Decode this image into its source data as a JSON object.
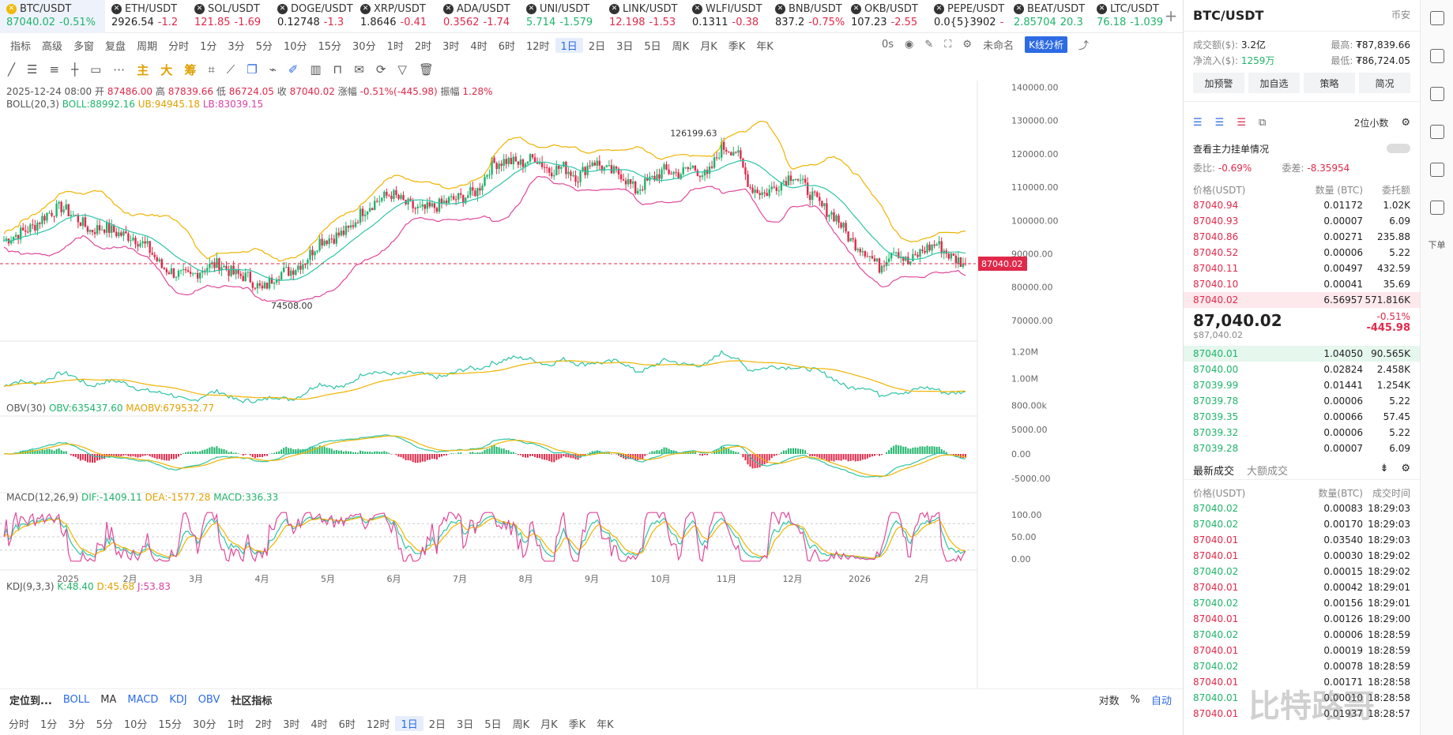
{
  "tickers": [
    {
      "name": "BTC/USDT",
      "price": "87040.02",
      "change": "-0.51%",
      "active": true,
      "color": "#1fb46a"
    },
    {
      "name": "ETH/USDT",
      "price": "2926.54",
      "change": "-1.2",
      "color": "#222"
    },
    {
      "name": "SOL/USDT",
      "price": "121.85",
      "change": "-1.69",
      "color": "#e0294a"
    },
    {
      "name": "DOGE/USDT",
      "price": "0.12748",
      "change": "-1.3",
      "color": "#222"
    },
    {
      "name": "XRP/USDT",
      "price": "1.8646",
      "change": "-0.41",
      "color": "#222"
    },
    {
      "name": "ADA/USDT",
      "price": "0.3562",
      "change": "-1.74",
      "color": "#e0294a"
    },
    {
      "name": "UNI/USDT",
      "price": "5.714",
      "change": "-1.579",
      "color": "#1fb46a"
    },
    {
      "name": "LINK/USDT",
      "price": "12.198",
      "change": "-1.53",
      "color": "#e0294a"
    },
    {
      "name": "WLFI/USDT",
      "price": "0.1311",
      "change": "-0.38",
      "color": "#222"
    },
    {
      "name": "BNB/USDT",
      "price": "837.2",
      "change": "-0.75%",
      "color": "#222"
    },
    {
      "name": "OKB/USDT",
      "price": "107.23",
      "change": "-2.55",
      "color": "#222"
    },
    {
      "name": "PEPE/USDT",
      "price": "0.0{5}3902",
      "change": "-",
      "color": "#222"
    },
    {
      "name": "BEAT/USDT",
      "price": "2.85704",
      "change": "20.3",
      "color": "#1fb46a"
    },
    {
      "name": "LTC/USDT",
      "price": "76.18",
      "change": "-1.039",
      "color": "#1fb46a"
    }
  ],
  "toolbar": {
    "items": [
      "指标",
      "高级",
      "多窗",
      "复盘",
      "周期",
      "分时",
      "1分",
      "3分",
      "5分",
      "10分",
      "15分",
      "30分",
      "1时",
      "2时",
      "3时",
      "4时",
      "6时",
      "12时",
      "1日",
      "2日",
      "3日",
      "5日",
      "周K",
      "月K",
      "季K",
      "年K"
    ],
    "selected": "1日"
  },
  "drawbar": {
    "main": "主",
    "big": "大",
    "chip": "筹"
  },
  "rtools": {
    "seconds": "0s",
    "unnamed": "未命名",
    "kline": "K线分析"
  },
  "info": {
    "date": "2025-12-24 08:00",
    "open_l": "开",
    "open": "87486.00",
    "high_l": "高",
    "high": "87839.66",
    "low_l": "低",
    "low": "86724.05",
    "close_l": "收",
    "close": "87040.02",
    "chg_l": "涨幅",
    "chg": "-0.51%(-445.98)",
    "amp_l": "振幅",
    "amp": "1.28%"
  },
  "boll": {
    "label": "BOLL(20,3)",
    "boll": "BOLL:88992.16",
    "ub": "UB:94945.18",
    "lb": "LB:83039.15"
  },
  "obv": {
    "label": "OBV(30)",
    "obv": "OBV:635437.60",
    "maobv": "MAOBV:679532.77"
  },
  "macd": {
    "label": "MACD(12,26,9)",
    "dif": "DIF:-1409.11",
    "dea": "DEA:-1577.28",
    "macd": "MACD:336.33"
  },
  "kdj": {
    "label": "KDJ(9,3,3)",
    "k": "K:48.40",
    "d": "D:45.68",
    "j": "J:53.83"
  },
  "price_axis": [
    "140000.00",
    "130000.00",
    "120000.00",
    "110000.00",
    "100000.00",
    "90000.00",
    "80000.00",
    "70000.00"
  ],
  "current_price": "87040.02",
  "high_mark": "126199.63",
  "low_mark": "74508.00",
  "obv_axis": [
    "1.20M",
    "1.00M",
    "800.00k"
  ],
  "macd_axis": [
    "5000.00",
    "0.00",
    "-5000.00"
  ],
  "kdj_axis": [
    "100.00",
    "50.00",
    "0.00"
  ],
  "months": [
    "2025",
    "2月",
    "3月",
    "4月",
    "5月",
    "6月",
    "7月",
    "8月",
    "9月",
    "10月",
    "11月",
    "12月",
    "2026",
    "2月"
  ],
  "bottom_ind": {
    "locate": "定位到...",
    "boll": "BOLL",
    "ma": "MA",
    "macd": "MACD",
    "kdj": "KDJ",
    "obv": "OBV",
    "community": "社区指标",
    "log": "对数",
    "pct": "%",
    "auto": "自动"
  },
  "bottom_per": [
    "分时",
    "1分",
    "3分",
    "5分",
    "10分",
    "15分",
    "30分",
    "1时",
    "2时",
    "3时",
    "4时",
    "6时",
    "12时",
    "1日",
    "2日",
    "3日",
    "5日",
    "周K",
    "月K",
    "季K",
    "年K"
  ],
  "right": {
    "pair": "BTC/USDT",
    "exchange": "币安",
    "vol_l": "成交额($):",
    "vol": "3.2亿",
    "high_l": "最高:",
    "high": "₮87,839.66",
    "inflow_l": "净流入($):",
    "inflow": "1259万",
    "low_l": "最低:",
    "low": "₮86,724.05",
    "buttons": [
      "加预警",
      "加自选",
      "策略",
      "简况"
    ],
    "decimals": "2位小数",
    "depth_link": "查看主力挂单情况",
    "ratio_l": "委比:",
    "ratio": "-0.69%",
    "diff_l": "委差:",
    "diff": "-8.35954",
    "ob_head": [
      "价格(USDT)",
      "数量 (BTC)",
      "委托额"
    ],
    "asks": [
      [
        "87040.94",
        "0.01172",
        "1.02K"
      ],
      [
        "87040.93",
        "0.00007",
        "6.09"
      ],
      [
        "87040.86",
        "0.00271",
        "235.88"
      ],
      [
        "87040.52",
        "0.00006",
        "5.22"
      ],
      [
        "87040.11",
        "0.00497",
        "432.59"
      ],
      [
        "87040.10",
        "0.00041",
        "35.69"
      ],
      [
        "87040.02",
        "6.56957",
        "571.816K"
      ]
    ],
    "last_price": "87,040.02",
    "last_usd": "$87,040.02",
    "last_pct": "-0.51%",
    "last_chg": "-445.98",
    "bids": [
      [
        "87040.01",
        "1.04050",
        "90.565K"
      ],
      [
        "87040.00",
        "0.02824",
        "2.458K"
      ],
      [
        "87039.99",
        "0.01441",
        "1.254K"
      ],
      [
        "87039.78",
        "0.00006",
        "5.22"
      ],
      [
        "87039.35",
        "0.00066",
        "57.45"
      ],
      [
        "87039.32",
        "0.00006",
        "5.22"
      ],
      [
        "87039.28",
        "0.00007",
        "6.09"
      ]
    ],
    "tabs": [
      "最新成交",
      "大额成交"
    ],
    "tr_head": [
      "价格(USDT)",
      "数量(BTC)",
      "成交时间"
    ],
    "trades": [
      [
        "87040.02",
        "0.00083",
        "18:29:03",
        "g"
      ],
      [
        "87040.02",
        "0.00170",
        "18:29:03",
        "g"
      ],
      [
        "87040.01",
        "0.03540",
        "18:29:03",
        "r"
      ],
      [
        "87040.01",
        "0.00030",
        "18:29:02",
        "r"
      ],
      [
        "87040.02",
        "0.00015",
        "18:29:02",
        "g"
      ],
      [
        "87040.01",
        "0.00042",
        "18:29:01",
        "r"
      ],
      [
        "87040.02",
        "0.00156",
        "18:29:01",
        "g"
      ],
      [
        "87040.01",
        "0.00126",
        "18:29:00",
        "r"
      ],
      [
        "87040.02",
        "0.00006",
        "18:28:59",
        "g"
      ],
      [
        "87040.01",
        "0.00019",
        "18:28:59",
        "r"
      ],
      [
        "87040.02",
        "0.00078",
        "18:28:59",
        "g"
      ],
      [
        "87040.01",
        "0.00171",
        "18:28:58",
        "r"
      ],
      [
        "87040.01",
        "0.00010",
        "18:28:58",
        "g"
      ],
      [
        "87040.01",
        "0.01937",
        "18:28:57",
        "r"
      ]
    ],
    "side_label": "下单"
  },
  "watermark": "比特路哥",
  "colors": {
    "up": "#1fb46a",
    "down": "#e0294a",
    "ub": "#f0b400",
    "mid": "#2ec4a5",
    "lb": "#e0489a",
    "accent": "#2d6be4"
  },
  "chart_data": {
    "type": "candlestick",
    "title": "BTC/USDT 1日",
    "price_range": [
      65000,
      142000
    ],
    "high_marker": 126199.63,
    "low_marker": 74508.0,
    "last": 87040.02,
    "close_path": [
      94000,
      96000,
      98000,
      102000,
      104000,
      101000,
      97000,
      98000,
      96000,
      95000,
      92000,
      86000,
      84000,
      83000,
      86000,
      87000,
      84000,
      83000,
      79000,
      84000,
      85000,
      88000,
      94000,
      95000,
      97000,
      103000,
      106000,
      108000,
      105000,
      103000,
      104000,
      106000,
      107000,
      109000,
      117000,
      118000,
      117000,
      119000,
      115000,
      116000,
      113000,
      118000,
      115000,
      114000,
      109000,
      112000,
      115000,
      114000,
      116000,
      113000,
      122000,
      121000,
      110000,
      108000,
      111000,
      114000,
      109000,
      104000,
      101000,
      94000,
      91000,
      86000,
      92000,
      87000,
      91000,
      93000,
      89000,
      87000
    ]
  }
}
